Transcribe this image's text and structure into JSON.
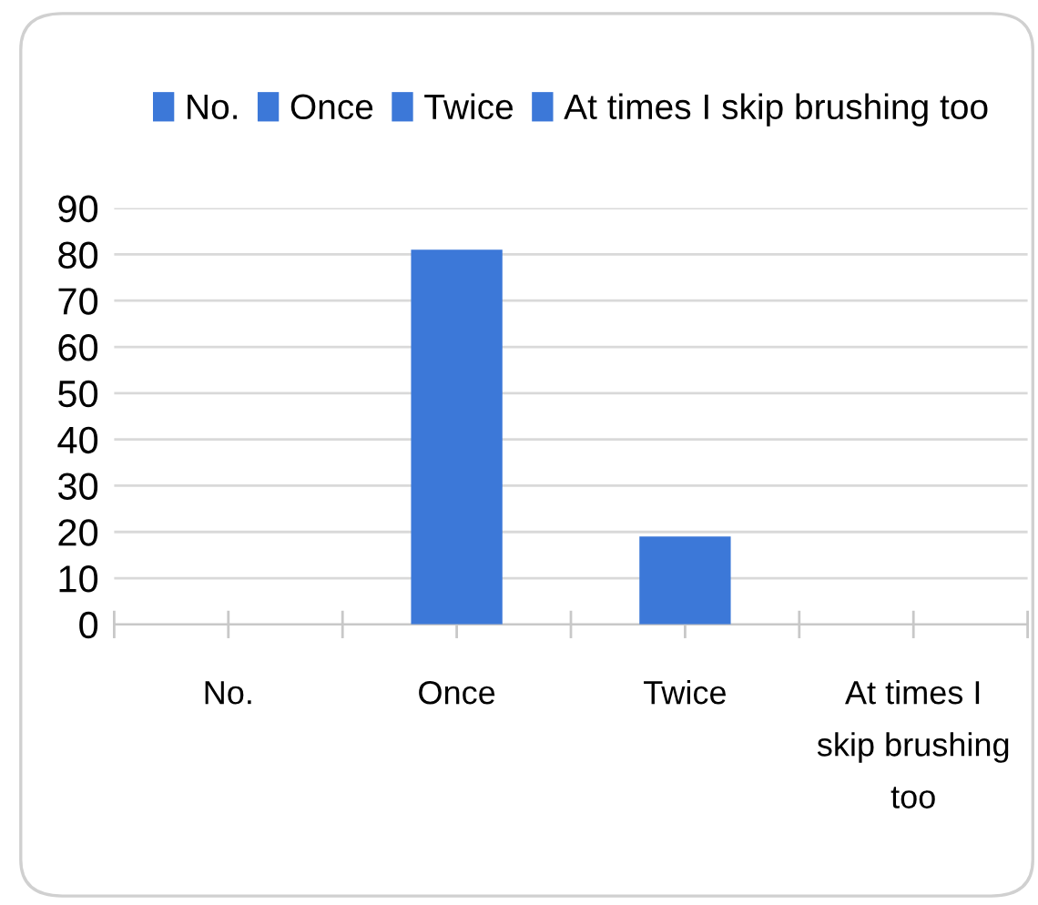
{
  "chart_data": {
    "type": "bar",
    "categories": [
      "No.",
      "Once",
      "Twice",
      "At times I skip brushing too"
    ],
    "series": [
      {
        "name": "No.",
        "color": "#3c78d8",
        "values": [
          0,
          null,
          null,
          null
        ]
      },
      {
        "name": "Once",
        "color": "#3c78d8",
        "values": [
          null,
          81,
          null,
          null
        ]
      },
      {
        "name": "Twice",
        "color": "#3c78d8",
        "values": [
          null,
          null,
          19,
          null
        ]
      },
      {
        "name": "At times I skip brushing too",
        "color": "#3c78d8",
        "values": [
          null,
          null,
          null,
          0
        ]
      }
    ],
    "stacked": true,
    "ylim": [
      0,
      90
    ],
    "yticks": [
      0,
      10,
      20,
      30,
      40,
      50,
      60,
      70,
      80,
      90
    ],
    "grid": "y",
    "legend": "top"
  }
}
